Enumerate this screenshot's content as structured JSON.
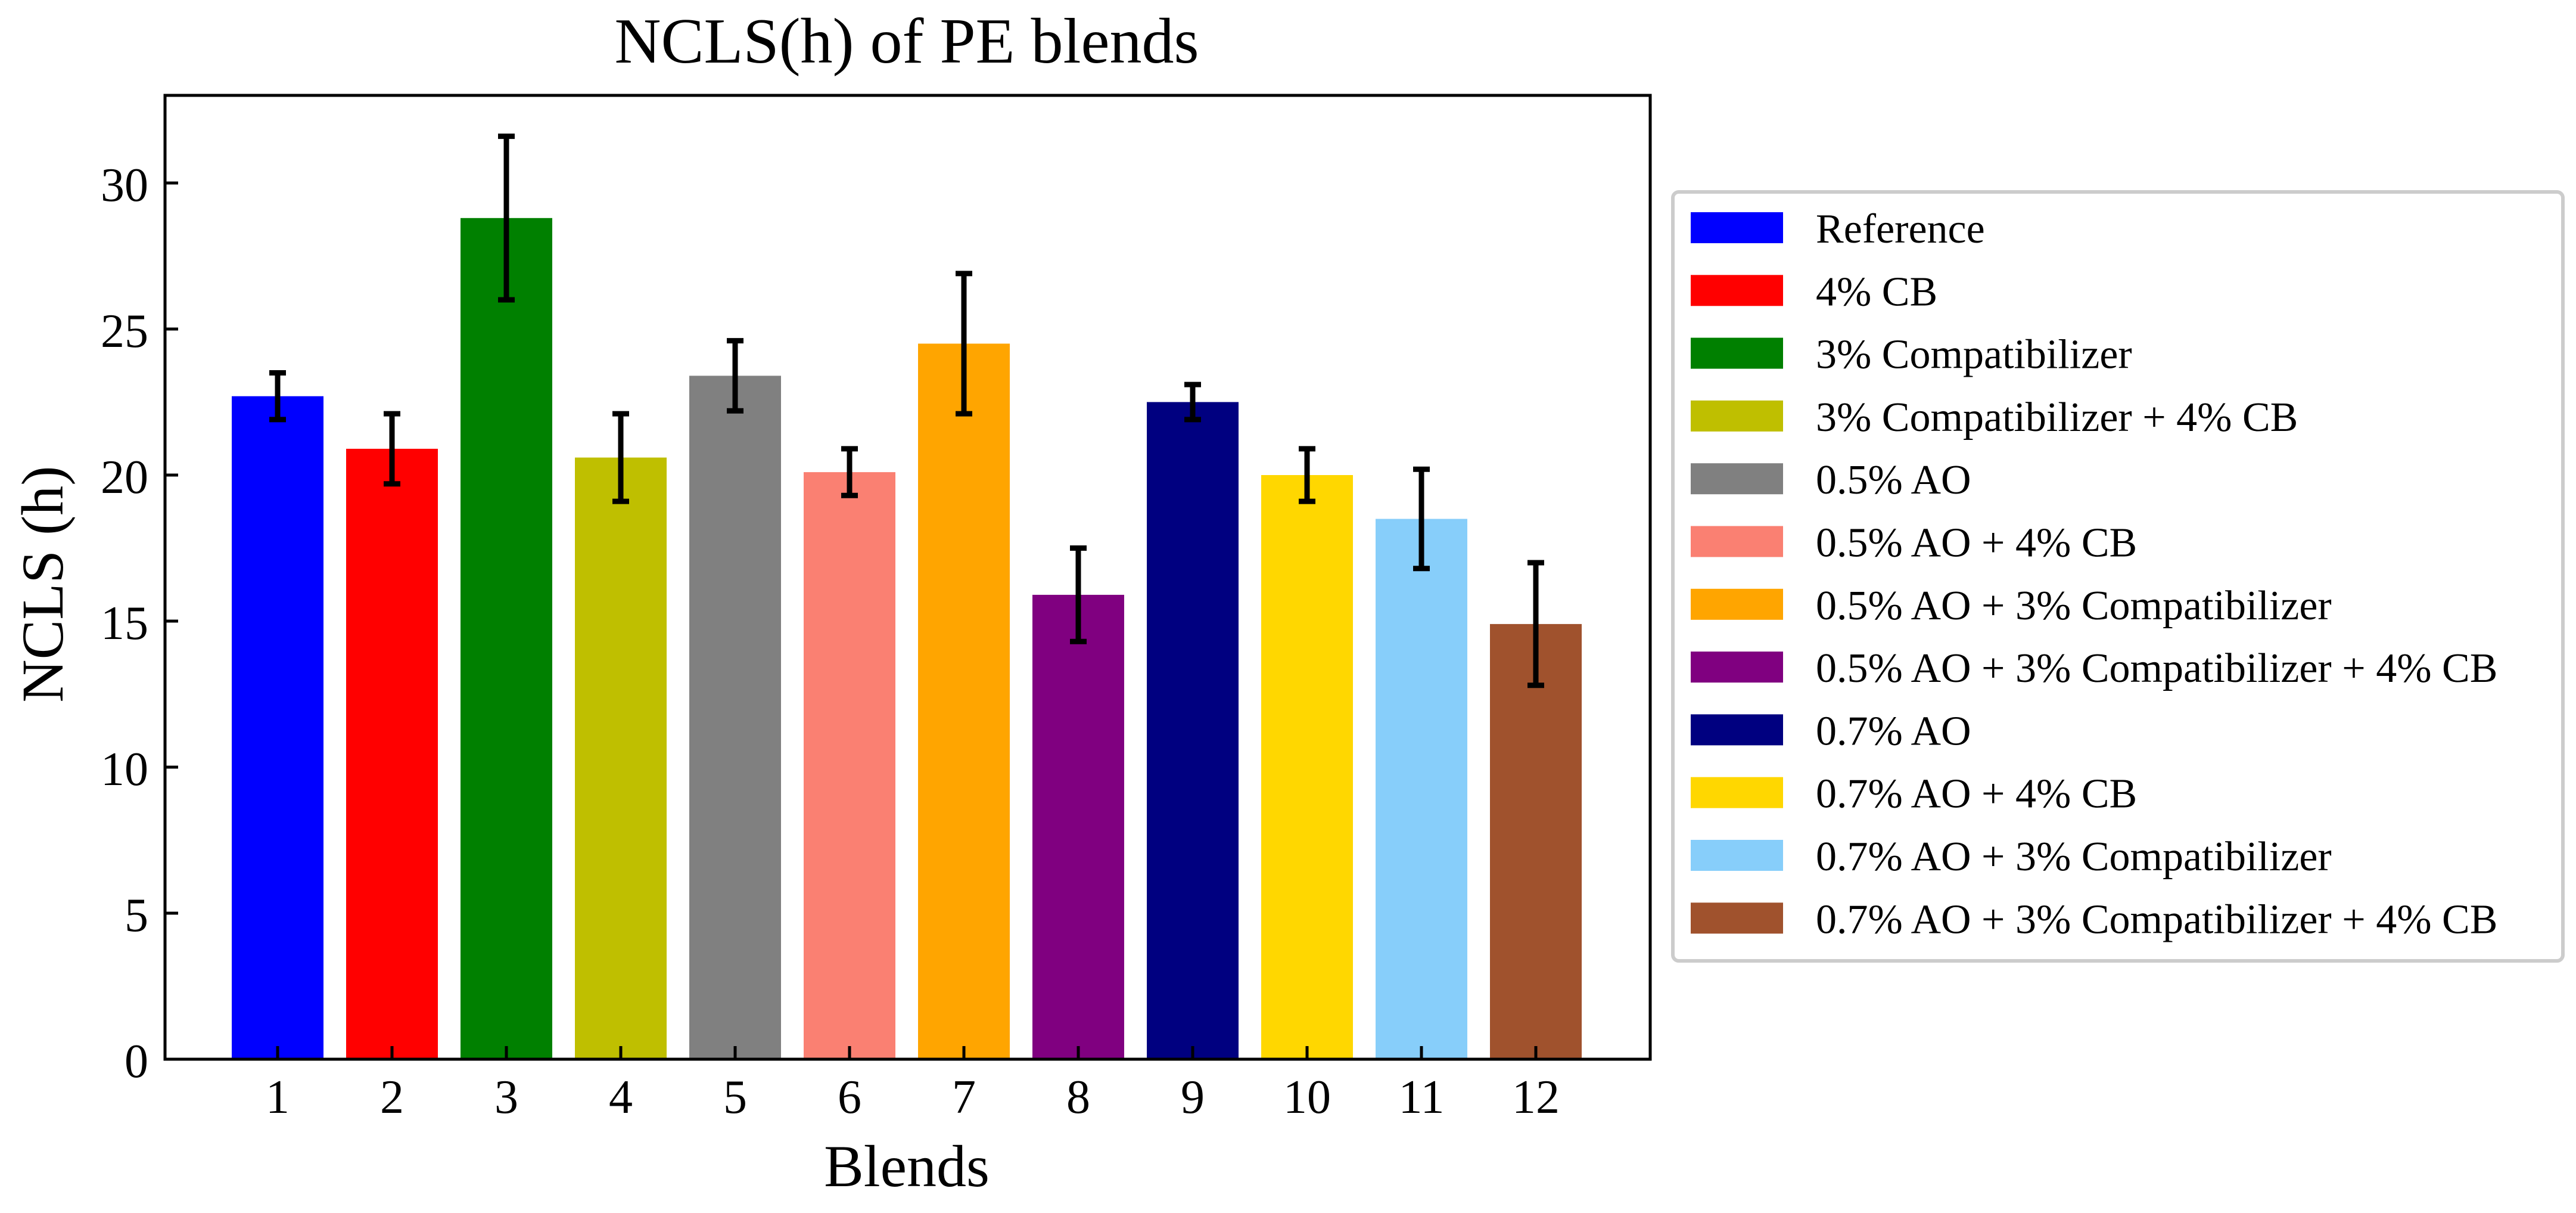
{
  "chart_data": {
    "type": "bar",
    "title": "NCLS(h) of PE blends",
    "xlabel": "Blends",
    "ylabel": "NCLS (h)",
    "ylim": [
      0,
      33
    ],
    "yticks": [
      0,
      5,
      10,
      15,
      20,
      25,
      30
    ],
    "categories": [
      "1",
      "2",
      "3",
      "4",
      "5",
      "6",
      "7",
      "8",
      "9",
      "10",
      "11",
      "12"
    ],
    "values": [
      22.7,
      20.9,
      28.8,
      20.6,
      23.4,
      20.1,
      24.5,
      15.9,
      22.5,
      20.0,
      18.5,
      14.9
    ],
    "errors": [
      0.8,
      1.2,
      2.8,
      1.5,
      1.2,
      0.8,
      2.4,
      1.6,
      0.6,
      0.9,
      1.7,
      2.1
    ],
    "legend_position": "right",
    "legend": [
      {
        "label": "Reference",
        "color": "#0000ff"
      },
      {
        "label": "4% CB",
        "color": "#ff0000"
      },
      {
        "label": "3% Compatibilizer",
        "color": "#008000"
      },
      {
        "label": "3% Compatibilizer + 4% CB",
        "color": "#bfbf00"
      },
      {
        "label": "0.5% AO",
        "color": "#808080"
      },
      {
        "label": "0.5% AO + 4% CB",
        "color": "#fa8072"
      },
      {
        "label": "0.5% AO + 3% Compatibilizer",
        "color": "#ffa500"
      },
      {
        "label": "0.5% AO + 3% Compatibilizer + 4% CB",
        "color": "#800080"
      },
      {
        "label": "0.7% AO",
        "color": "#000080"
      },
      {
        "label": "0.7% AO + 4% CB",
        "color": "#ffd700"
      },
      {
        "label": "0.7% AO + 3% Compatibilizer",
        "color": "#87cefa"
      },
      {
        "label": "0.7% AO + 3% Compatibilizer + 4% CB",
        "color": "#a0522d"
      }
    ]
  }
}
